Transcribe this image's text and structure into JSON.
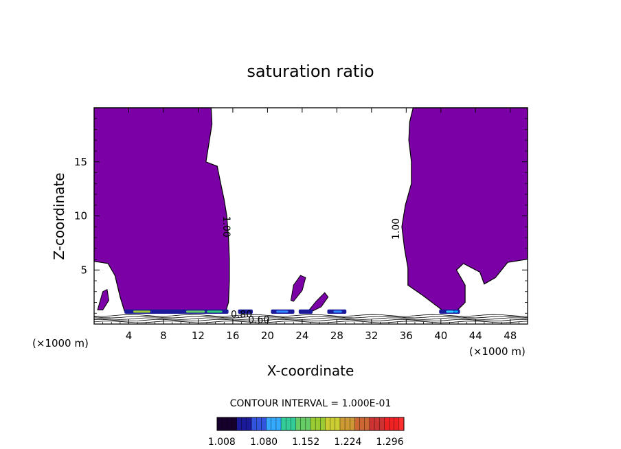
{
  "chart_data": {
    "type": "heatmap",
    "title": "saturation ratio",
    "xlabel": "X-coordinate",
    "ylabel": "Z-coordinate",
    "x_unit_label": "(×1000 m)",
    "z_unit_label": "(×1000 m)",
    "xlim": [
      0,
      50
    ],
    "ylim": [
      0,
      20
    ],
    "x_ticks": [
      4,
      8,
      12,
      16,
      20,
      24,
      28,
      32,
      36,
      40,
      44,
      48
    ],
    "y_ticks": [
      5,
      10,
      15
    ],
    "contour_interval_text": "CONTOUR INTERVAL = 1.000E-01",
    "contour_labels": [
      "1.00",
      "1.00",
      "0.80",
      "0.60"
    ],
    "colorbar": {
      "ticks": [
        "1.008",
        "1.080",
        "1.152",
        "1.224",
        "1.296"
      ],
      "range": [
        1.0,
        1.32
      ]
    },
    "regions": [
      {
        "name": "supersaturated-left",
        "x_range": [
          0,
          15.5
        ],
        "z_range": [
          1.2,
          20
        ],
        "value": 1.0
      },
      {
        "name": "supersaturated-right",
        "x_range": [
          36.5,
          50
        ],
        "z_range": [
          1.2,
          20
        ],
        "value": 1.0
      }
    ],
    "colors": {
      "fill": "#7b00a6",
      "low_end": "#1a0066",
      "high_end": "#ff2020"
    }
  }
}
